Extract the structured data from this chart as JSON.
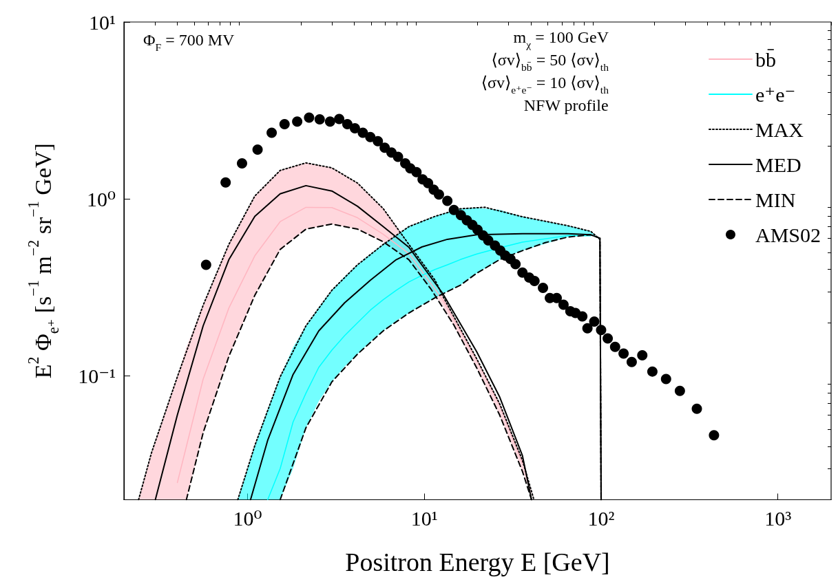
{
  "chart_data": {
    "type": "line",
    "xlabel": "Positron Energy E [GeV]",
    "ylabel": "E$^{2}$ Φ$_{e⁺}$ [s$^{−1}$ m$^{−2}$ sr$^{−1}$ GeV]",
    "log": "xy",
    "legend": "top right",
    "annotations": [
      "Φ$_{F}$ = 700 MV",
      "m$_{χ}$ = 100 GeV",
      "⟨σv⟩$_{bb̄}$ = 50 ⟨σv⟩$_{th}$",
      "⟨σv⟩$_{e⁺e⁻}$ = 10 ⟨σv⟩$_{th}$",
      "NFW profile"
    ],
    "xlim": [
      0.2,
      2000
    ],
    "ylim": [
      0.02,
      10
    ],
    "xticks": [
      {
        "value": 0.2,
        "label": null
      },
      {
        "value": 0.3,
        "label": null
      },
      {
        "value": 0.4,
        "label": null
      },
      {
        "value": 0.5,
        "label": null
      },
      {
        "value": 0.6,
        "label": null
      },
      {
        "value": 0.7,
        "label": null
      },
      {
        "value": 0.8,
        "label": null
      },
      {
        "value": 0.9,
        "label": null
      },
      {
        "value": 1,
        "label": "10⁰"
      },
      {
        "value": 2,
        "label": null
      },
      {
        "value": 3,
        "label": null
      },
      {
        "value": 4,
        "label": null
      },
      {
        "value": 5,
        "label": null
      },
      {
        "value": 6,
        "label": null
      },
      {
        "value": 7,
        "label": null
      },
      {
        "value": 8,
        "label": null
      },
      {
        "value": 9,
        "label": null
      },
      {
        "value": 10,
        "label": "10¹"
      },
      {
        "value": 20,
        "label": null
      },
      {
        "value": 30,
        "label": null
      },
      {
        "value": 40,
        "label": null
      },
      {
        "value": 50,
        "label": null
      },
      {
        "value": 60,
        "label": null
      },
      {
        "value": 70,
        "label": null
      },
      {
        "value": 80,
        "label": null
      },
      {
        "value": 90,
        "label": null
      },
      {
        "value": 100,
        "label": "10²"
      },
      {
        "value": 200,
        "label": null
      },
      {
        "value": 300,
        "label": null
      },
      {
        "value": 400,
        "label": null
      },
      {
        "value": 500,
        "label": null
      },
      {
        "value": 600,
        "label": null
      },
      {
        "value": 700,
        "label": null
      },
      {
        "value": 800,
        "label": null
      },
      {
        "value": 900,
        "label": null
      },
      {
        "value": 1000,
        "label": "10³"
      },
      {
        "value": 2000,
        "label": null
      }
    ],
    "yticks": [
      {
        "value": 0.02,
        "label": null
      },
      {
        "value": 0.03,
        "label": null
      },
      {
        "value": 0.04,
        "label": null
      },
      {
        "value": 0.05,
        "label": null
      },
      {
        "value": 0.06,
        "label": null
      },
      {
        "value": 0.07,
        "label": null
      },
      {
        "value": 0.08,
        "label": null
      },
      {
        "value": 0.09,
        "label": null
      },
      {
        "value": 0.1,
        "label": "10⁻¹"
      },
      {
        "value": 0.2,
        "label": null
      },
      {
        "value": 0.3,
        "label": null
      },
      {
        "value": 0.4,
        "label": null
      },
      {
        "value": 0.5,
        "label": null
      },
      {
        "value": 0.6,
        "label": null
      },
      {
        "value": 0.7,
        "label": null
      },
      {
        "value": 0.8,
        "label": null
      },
      {
        "value": 0.9,
        "label": null
      },
      {
        "value": 1,
        "label": "10⁰"
      },
      {
        "value": 2,
        "label": null
      },
      {
        "value": 3,
        "label": null
      },
      {
        "value": 4,
        "label": null
      },
      {
        "value": 5,
        "label": null
      },
      {
        "value": 6,
        "label": null
      },
      {
        "value": 7,
        "label": null
      },
      {
        "value": 8,
        "label": null
      },
      {
        "value": 9,
        "label": null
      },
      {
        "value": 10,
        "label": "10¹"
      }
    ],
    "series": [
      {
        "name": "bb̄",
        "color": "#ffb6c1",
        "x": [
          0.242,
          0.286,
          0.401,
          0.451,
          0.561,
          0.784,
          1.1,
          1.53,
          2.14,
          3.0,
          4.19,
          5.86,
          8.18,
          12.7,
          19.8,
          26.7,
          35.9,
          41.7
        ],
        "values": [
          null,
          null,
          0.025,
          0.04,
          0.096,
          0.242,
          0.478,
          0.745,
          0.897,
          0.895,
          0.784,
          0.632,
          0.492,
          0.27,
          0.123,
          0.068,
          0.032,
          null
        ],
        "upper": [
          0.02,
          0.0367,
          0.099,
          0.145,
          0.251,
          0.554,
          1.04,
          1.45,
          1.6,
          1.5,
          1.23,
          0.882,
          0.554,
          0.284,
          0.125,
          0.0696,
          0.0334,
          0.02
        ],
        "lower": [
          0.02,
          0.02,
          0.02,
          0.02,
          0.0478,
          0.129,
          0.286,
          0.519,
          0.676,
          0.722,
          0.676,
          0.573,
          0.454,
          0.25,
          0.111,
          0.0601,
          0.0289,
          0.02
        ]
      },
      {
        "name": "e⁺e⁻",
        "color": "#00ffff",
        "x": [
          0.881,
          1.1,
          1.3,
          1.53,
          1.81,
          2.14,
          2.53,
          3.0,
          3.54,
          4.19,
          4.96,
          5.86,
          6.93,
          8.18,
          9.69,
          11.5,
          13.5,
          16.0,
          19.8,
          26.7,
          35.9,
          65.0,
          87.5,
          98.5,
          100
        ],
        "values": [
          null,
          null,
          0.02,
          0.03,
          0.055,
          0.08,
          0.112,
          0.14,
          0.169,
          0.2,
          0.236,
          0.27,
          0.305,
          0.34,
          0.37,
          0.4,
          0.425,
          0.455,
          0.489,
          0.53,
          0.571,
          0.622,
          0.62,
          null,
          null
        ],
        "upper": [
          0.02,
          0.0405,
          0.065,
          0.099,
          0.145,
          0.192,
          0.245,
          0.305,
          0.365,
          0.425,
          0.49,
          0.554,
          0.625,
          0.698,
          0.75,
          0.798,
          0.84,
          0.881,
          0.89,
          0.87,
          0.794,
          0.706,
          0.656,
          0.592,
          0.02
        ],
        "lower": [
          0.02,
          0.02,
          0.02,
          0.02,
          0.03,
          0.051,
          0.072,
          0.0927,
          0.113,
          0.133,
          0.157,
          0.18,
          0.205,
          0.227,
          0.252,
          0.277,
          0.3,
          0.326,
          0.381,
          0.455,
          0.511,
          0.61,
          0.628,
          0.6,
          0.02
        ]
      },
      {
        "name": "MAX",
        "color": "#000000",
        "line_style": "dotted",
        "x": [
          0.242,
          0.286,
          0.401,
          0.561,
          0.784,
          1.1,
          1.53,
          2.14,
          3.0,
          4.19,
          5.86,
          8.18,
          11.5,
          12.7,
          19.8,
          26.7,
          35.9,
          41.7
        ],
        "values": [
          0.02,
          0.0367,
          0.099,
          0.251,
          0.554,
          1.04,
          1.45,
          1.6,
          1.5,
          1.23,
          0.882,
          0.554,
          0.348,
          0.284,
          0.125,
          0.0696,
          0.0334,
          0.02
        ]
      },
      {
        "name": "MED",
        "color": "#000000",
        "line_style": "solid",
        "x": [
          0.301,
          0.401,
          0.561,
          0.784,
          1.1,
          1.53,
          2.14,
          3.0,
          4.19,
          5.86,
          8.18,
          12.7,
          19.8,
          26.7,
          35.9,
          40.4
        ],
        "values": [
          0.02,
          0.0603,
          0.192,
          0.454,
          0.798,
          1.07,
          1.19,
          1.11,
          0.91,
          0.698,
          0.534,
          0.293,
          0.137,
          0.076,
          0.0355,
          0.02
        ]
      },
      {
        "name": "MIN",
        "color": "#000000",
        "line_style": "dashed",
        "x": [
          0.451,
          0.561,
          0.784,
          1.1,
          1.53,
          2.14,
          3.0,
          4.19,
          5.86,
          8.18,
          10.9,
          14.7,
          19.8,
          26.7,
          35.9,
          40.4
        ],
        "values": [
          0.02,
          0.0478,
          0.129,
          0.286,
          0.519,
          0.676,
          0.722,
          0.676,
          0.573,
          0.454,
          0.31,
          0.194,
          0.111,
          0.0601,
          0.0289,
          0.02
        ]
      },
      {
        "color": "#000000",
        "line_style": "dotted",
        "x": [
          0.881,
          1.1,
          1.53,
          2.14,
          3.0,
          4.19,
          5.86,
          8.18,
          11.5,
          16.0,
          22.0,
          35.9,
          65.0,
          87.5,
          98.5,
          100
        ],
        "values": [
          0.02,
          0.0405,
          0.099,
          0.192,
          0.305,
          0.425,
          0.554,
          0.698,
          0.798,
          0.881,
          0.898,
          0.794,
          0.706,
          0.656,
          0.592,
          0.02
        ]
      },
      {
        "color": "#000000",
        "line_style": "solid",
        "x": [
          1.04,
          1.3,
          1.81,
          2.53,
          3.54,
          4.96,
          6.93,
          9.69,
          13.5,
          19.8,
          35.9,
          65.0,
          87.5,
          98.5,
          100
        ],
        "values": [
          0.02,
          0.0433,
          0.102,
          0.18,
          0.259,
          0.348,
          0.454,
          0.536,
          0.592,
          0.628,
          0.637,
          0.637,
          0.628,
          0.6,
          0.02
        ]
      },
      {
        "color": "#000000",
        "line_style": "dashed",
        "x": [
          1.53,
          2.14,
          3.0,
          4.19,
          5.86,
          8.18,
          11.5,
          16.0,
          19.8,
          26.7,
          35.9,
          48.3,
          65.0,
          87.5,
          98.5,
          100
        ],
        "values": [
          0.02,
          0.051,
          0.0927,
          0.133,
          0.18,
          0.227,
          0.277,
          0.326,
          0.381,
          0.455,
          0.511,
          0.567,
          0.61,
          0.628,
          0.6,
          0.02
        ]
      },
      {
        "name": "AMS02",
        "type": "scatter",
        "color": "#000000",
        "marker": "circle",
        "x": [
          0.583,
          0.752,
          0.931,
          1.14,
          1.37,
          1.62,
          1.91,
          2.23,
          2.56,
          2.93,
          3.3,
          3.67,
          4.05,
          4.49,
          4.95,
          5.46,
          5.97,
          6.52,
          7.1,
          7.8,
          8.33,
          9.03,
          9.78,
          10.5,
          11.3,
          12.1,
          13.5,
          14.7,
          16.1,
          17.4,
          18.7,
          20.0,
          21.5,
          23.0,
          25.1,
          26.9,
          28.7,
          30.7,
          32.8,
          35.9,
          39.2,
          42.0,
          46.9,
          51.3,
          56.1,
          61.3,
          67.0,
          71.6,
          78.3,
          83.7,
          91.5,
          100,
          109,
          120,
          134,
          149,
          171,
          195,
          233,
          279,
          348,
          435
        ],
        "values": [
          0.425,
          1.24,
          1.59,
          1.9,
          2.37,
          2.65,
          2.74,
          2.88,
          2.82,
          2.74,
          2.83,
          2.65,
          2.51,
          2.37,
          2.24,
          2.12,
          1.95,
          1.83,
          1.73,
          1.59,
          1.49,
          1.42,
          1.29,
          1.23,
          1.13,
          1.06,
          0.976,
          0.867,
          0.811,
          0.759,
          0.714,
          0.671,
          0.623,
          0.583,
          0.546,
          0.511,
          0.479,
          0.458,
          0.429,
          0.384,
          0.36,
          0.344,
          0.315,
          0.276,
          0.276,
          0.253,
          0.232,
          0.227,
          0.217,
          0.186,
          0.203,
          0.182,
          0.163,
          0.146,
          0.134,
          0.12,
          0.131,
          0.106,
          0.0961,
          0.0824,
          0.0653,
          0.0463
        ]
      }
    ]
  }
}
